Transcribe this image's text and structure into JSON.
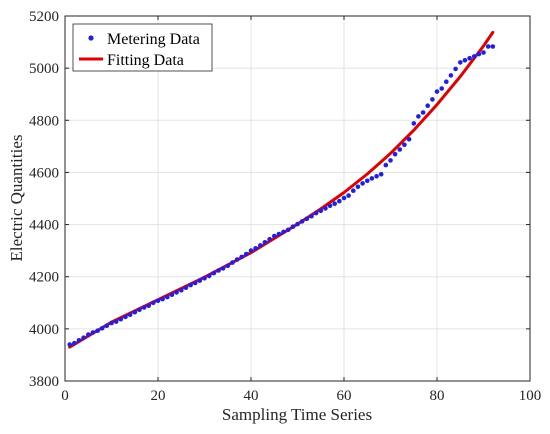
{
  "chart_data": {
    "type": "scatter",
    "xlabel": "Sampling Time Series",
    "ylabel": "Electric Quantities",
    "xlim": [
      0,
      100
    ],
    "ylim": [
      3800,
      5200
    ],
    "xticks": [
      0,
      20,
      40,
      60,
      80,
      100
    ],
    "yticks": [
      3800,
      4000,
      4200,
      4400,
      4600,
      4800,
      5000,
      5200
    ],
    "grid": true,
    "legend_position": "top-left",
    "series": [
      {
        "name": "Metering Data",
        "kind": "markers",
        "color": "#1f1fe6",
        "x": [
          1,
          2,
          3,
          4,
          5,
          6,
          7,
          8,
          9,
          10,
          11,
          12,
          13,
          14,
          15,
          16,
          17,
          18,
          19,
          20,
          21,
          22,
          23,
          24,
          25,
          26,
          27,
          28,
          29,
          30,
          31,
          32,
          33,
          34,
          35,
          36,
          37,
          38,
          39,
          40,
          41,
          42,
          43,
          44,
          45,
          46,
          47,
          48,
          49,
          50,
          51,
          52,
          53,
          54,
          55,
          56,
          57,
          58,
          59,
          60,
          61,
          62,
          63,
          64,
          65,
          66,
          67,
          68,
          69,
          70,
          71,
          72,
          73,
          74,
          75,
          76,
          77,
          78,
          79,
          80,
          81,
          82,
          83,
          84,
          85,
          86,
          87,
          88,
          89,
          90,
          91,
          92
        ],
        "y": [
          3940,
          3945,
          3956,
          3966,
          3978,
          3986,
          3993,
          4002,
          4012,
          4022,
          4028,
          4037,
          4046,
          4054,
          4064,
          4073,
          4082,
          4089,
          4100,
          4108,
          4114,
          4122,
          4131,
          4140,
          4148,
          4158,
          4168,
          4176,
          4185,
          4194,
          4203,
          4214,
          4224,
          4232,
          4242,
          4254,
          4266,
          4276,
          4287,
          4300,
          4309,
          4320,
          4332,
          4344,
          4356,
          4364,
          4372,
          4380,
          4392,
          4402,
          4412,
          4422,
          4432,
          4444,
          4453,
          4462,
          4472,
          4480,
          4490,
          4502,
          4511,
          4530,
          4545,
          4558,
          4568,
          4577,
          4585,
          4593,
          4628,
          4646,
          4670,
          4688,
          4706,
          4727,
          4788,
          4815,
          4830,
          4856,
          4880,
          4910,
          4922,
          4948,
          4972,
          4997,
          5022,
          5030,
          5038,
          5045,
          5054,
          5060,
          5083,
          5083
        ]
      },
      {
        "name": "Fitting Data",
        "kind": "line",
        "color": "#e00000",
        "x": [
          1,
          10,
          20,
          30,
          40,
          50,
          55,
          60,
          65,
          70,
          75,
          80,
          85,
          90,
          92
        ],
        "y": [
          3930,
          4026,
          4112,
          4198,
          4292,
          4402,
          4460,
          4523,
          4594,
          4673,
          4762,
          4860,
          4968,
          5085,
          5137
        ]
      }
    ]
  }
}
